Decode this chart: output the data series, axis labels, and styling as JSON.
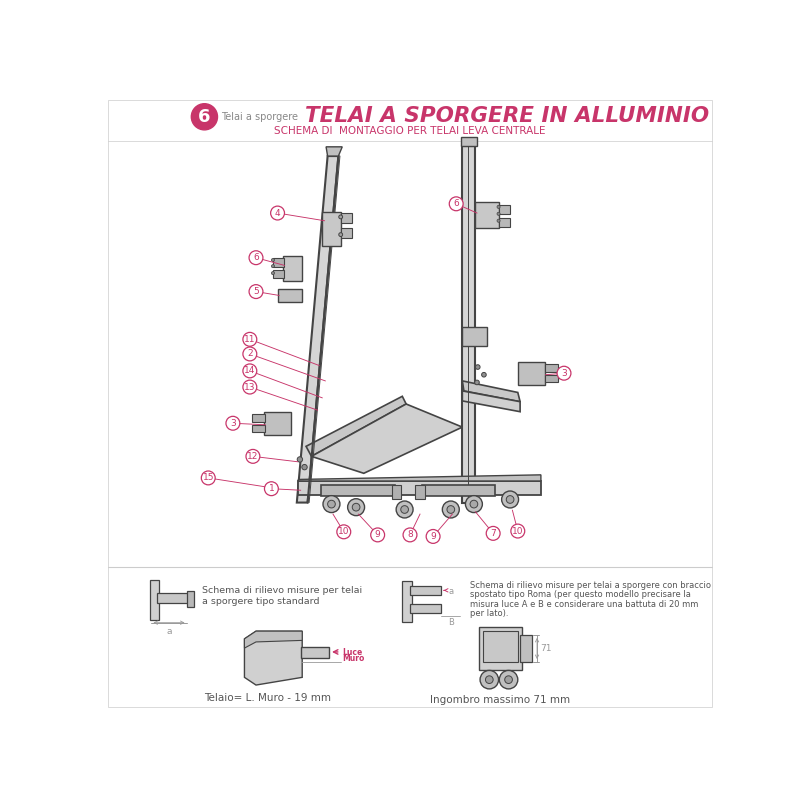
{
  "title_large": "TELAI A SPORGERE IN ALLUMINIO",
  "title_small": "SCHEMA DI  MONTAGGIO PER TELAI LEVA CENTRALE",
  "section_num": "6",
  "section_label": "Telai a sporgere",
  "title_color": "#c8356a",
  "line_color": "#c8356a",
  "bottom_left_caption1": "Schema di rilievo misure per telai",
  "bottom_left_caption2": "a sporgere tipo standard",
  "bottom_right_caption1": "Schema di rilievo misure per telai a sporgere con braccio",
  "bottom_right_caption2": "spostato tipo Roma (per questo modello precisare la",
  "bottom_right_caption3": "misura luce A e B e considerare una battuta di 20 mm",
  "bottom_right_caption4": "per lato).",
  "bottom_label_left": "Telaio= L. Muro - 19 mm",
  "bottom_label_right": "Ingombro massimo 71 mm",
  "bg_color": "#ffffff",
  "diagram_color": "#444444",
  "light_gray": "#999999"
}
